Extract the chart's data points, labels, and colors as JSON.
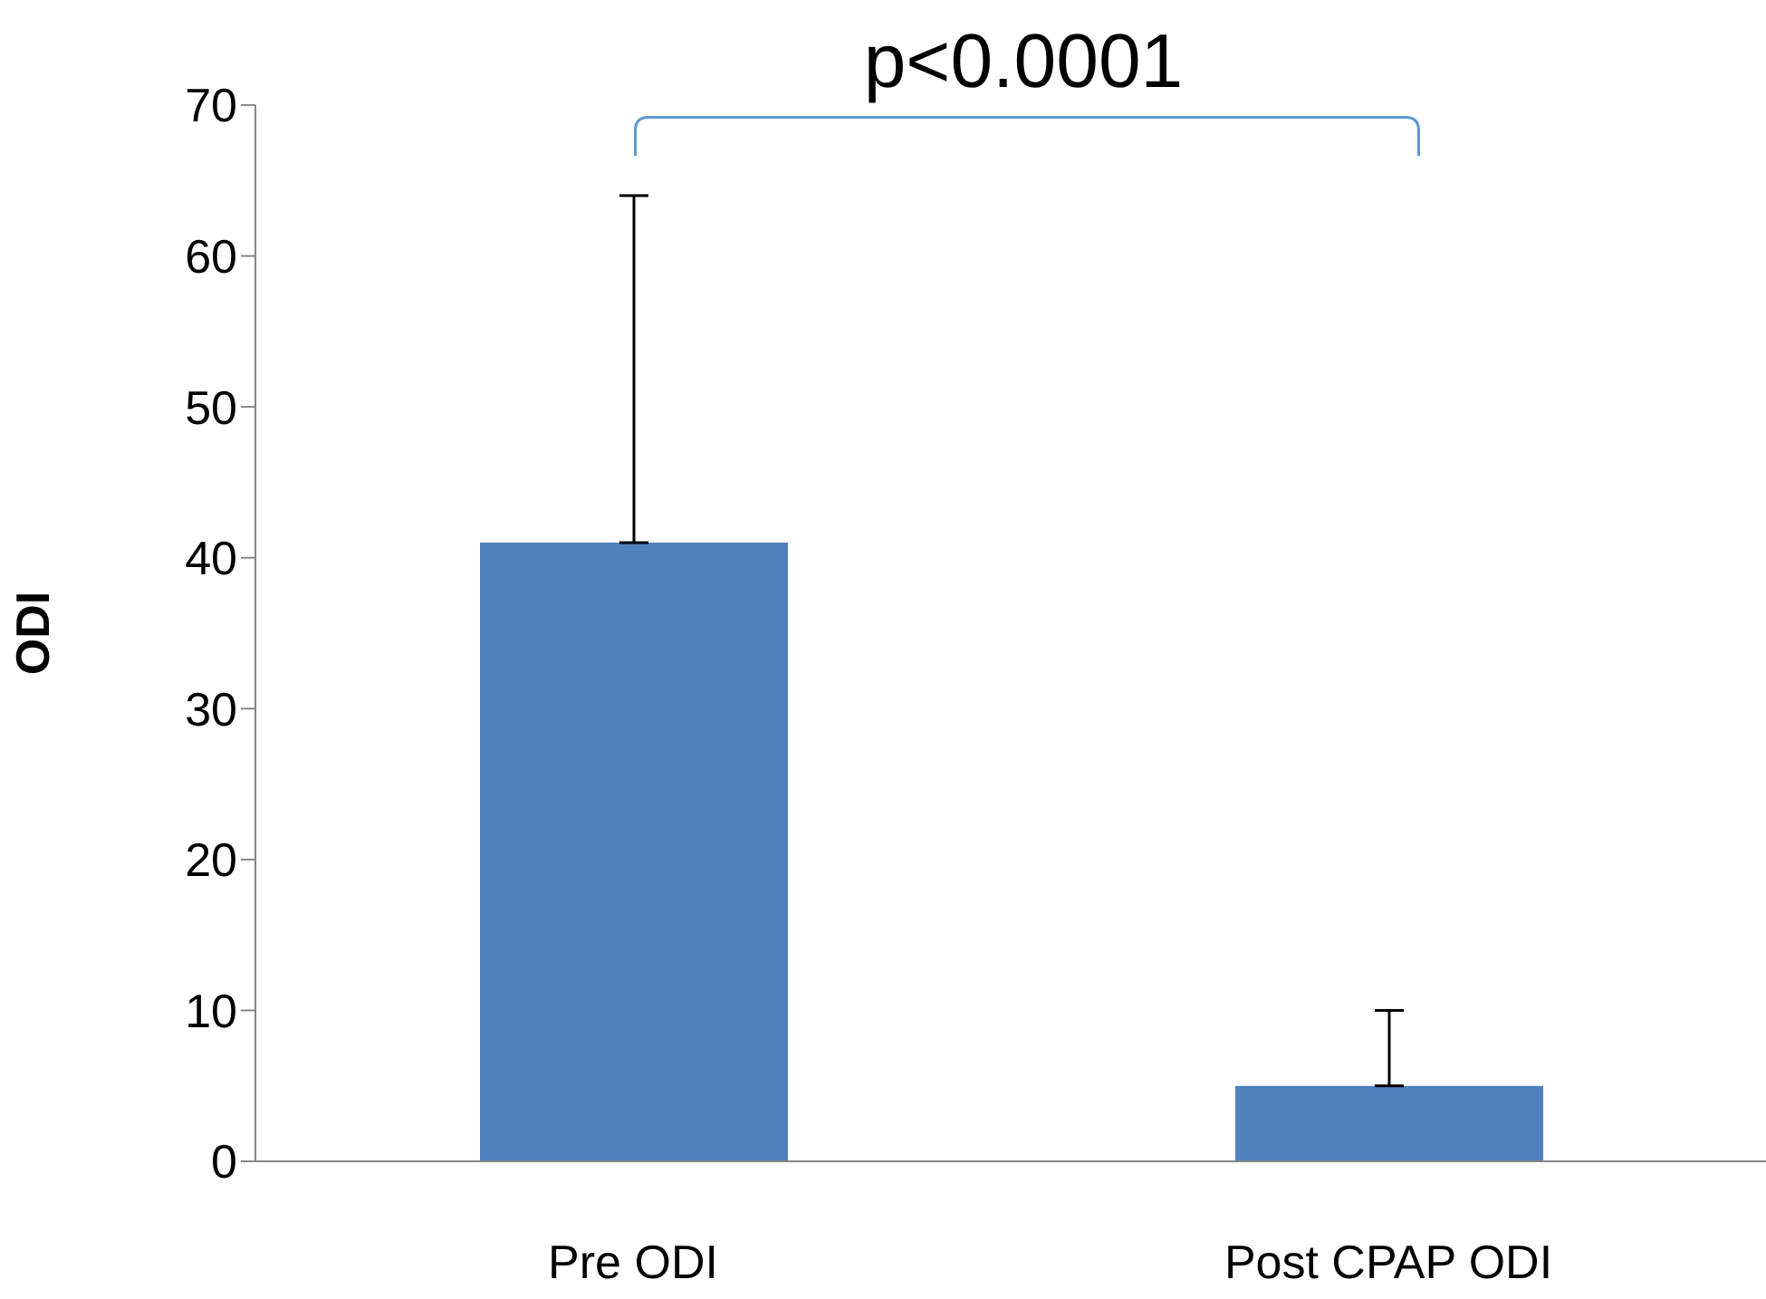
{
  "chart_data": {
    "type": "bar",
    "categories": [
      "Pre ODI",
      "Post CPAP ODI"
    ],
    "values": [
      41,
      5
    ],
    "errors": [
      [
        41,
        64
      ],
      [
        5,
        10
      ]
    ],
    "color": "#4f81bd",
    "grid": false,
    "legend": false,
    "ylabel": "ODI",
    "ylim": [
      0,
      70
    ],
    "yticks": [
      0,
      10,
      20,
      30,
      40,
      50,
      60,
      70
    ],
    "annotations": [
      "p<0.0001"
    ]
  }
}
